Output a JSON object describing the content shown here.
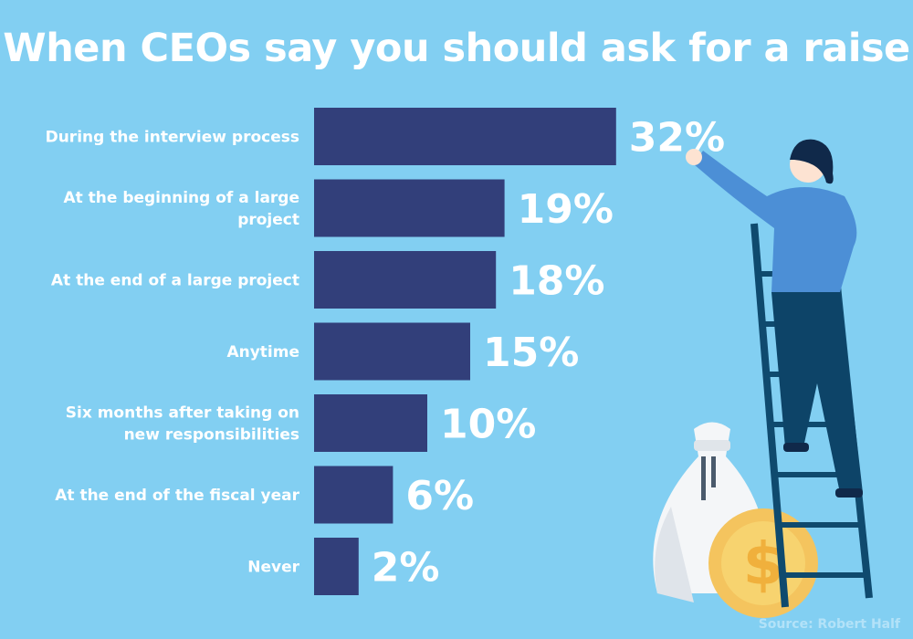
{
  "chart_data": {
    "type": "bar",
    "orientation": "horizontal",
    "title": "When CEOs say you should ask for a raise",
    "categories": [
      [
        "During the interview process"
      ],
      [
        "At the beginning of a large",
        "project"
      ],
      [
        "At the end of a large project"
      ],
      [
        "Anytime"
      ],
      [
        "Six months after taking on",
        "new responsibilities"
      ],
      [
        "At the end of the fiscal year"
      ],
      [
        "Never"
      ]
    ],
    "values": [
      32,
      19,
      18,
      15,
      10,
      6,
      2
    ],
    "data_labels": [
      "32%",
      "19%",
      "18%",
      "15%",
      "10%",
      "6%",
      "2%"
    ],
    "unit": "%",
    "grid": false,
    "colors": {
      "background": "#82cff2",
      "bar": "#323f7a",
      "text": "#ffffff"
    }
  },
  "source": "Source: Robert Half"
}
